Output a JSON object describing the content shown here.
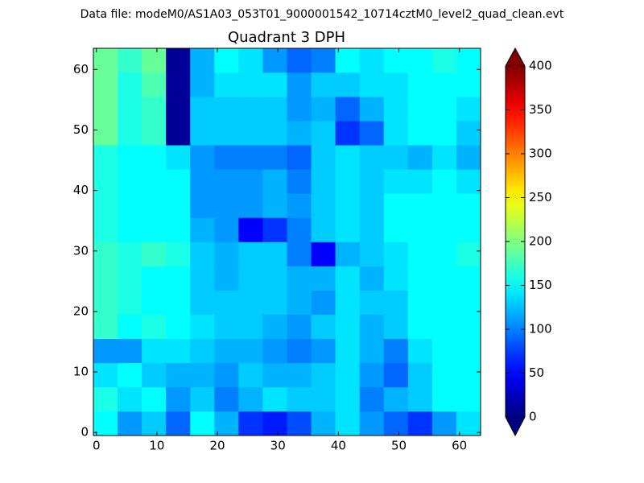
{
  "chart_data": {
    "type": "heatmap",
    "suptitle": "Data file: modeM0/AS1A03_053T01_9000001542_10714cztM0_level2_quad_clean.evt",
    "title": "Quadrant 3 DPH",
    "colormap": "jet",
    "clim": [
      0,
      400
    ],
    "colorbar_ticks": [
      0,
      50,
      100,
      150,
      200,
      250,
      300,
      350,
      400
    ],
    "xbins": [
      -0.5,
      3.5,
      7.5,
      11.5,
      15.5,
      19.5,
      23.5,
      27.5,
      31.5,
      35.5,
      39.5,
      43.5,
      47.5,
      51.5,
      55.5,
      59.5,
      63.5
    ],
    "ybins": [
      -0.5,
      3.5,
      7.5,
      11.5,
      15.5,
      19.5,
      23.5,
      27.5,
      31.5,
      35.5,
      39.5,
      43.5,
      47.5,
      51.5,
      55.5,
      59.5,
      63.5
    ],
    "xlim": [
      -0.5,
      63.5
    ],
    "ylim": [
      -0.5,
      63.5
    ],
    "xticks": [
      0,
      10,
      20,
      30,
      40,
      50,
      60
    ],
    "yticks": [
      0,
      10,
      20,
      30,
      40,
      50,
      60
    ],
    "values": [
      [
        150,
        110,
        130,
        90,
        150,
        120,
        70,
        60,
        80,
        120,
        140,
        110,
        90,
        70,
        110,
        140
      ],
      [
        160,
        140,
        150,
        110,
        130,
        100,
        120,
        140,
        130,
        130,
        140,
        100,
        120,
        130,
        150,
        150
      ],
      [
        140,
        150,
        130,
        120,
        120,
        110,
        130,
        120,
        120,
        130,
        140,
        110,
        90,
        130,
        150,
        150
      ],
      [
        110,
        110,
        140,
        140,
        130,
        120,
        120,
        110,
        100,
        110,
        140,
        120,
        100,
        140,
        150,
        150
      ],
      [
        170,
        150,
        160,
        150,
        140,
        130,
        130,
        120,
        110,
        130,
        140,
        120,
        130,
        150,
        150,
        150
      ],
      [
        170,
        160,
        150,
        150,
        130,
        130,
        130,
        130,
        120,
        110,
        140,
        130,
        130,
        150,
        150,
        150
      ],
      [
        170,
        160,
        150,
        150,
        130,
        120,
        130,
        130,
        120,
        120,
        140,
        120,
        140,
        150,
        150,
        150
      ],
      [
        170,
        160,
        170,
        160,
        130,
        120,
        130,
        130,
        100,
        50,
        120,
        130,
        140,
        150,
        150,
        160
      ],
      [
        160,
        150,
        150,
        150,
        120,
        110,
        50,
        70,
        100,
        130,
        140,
        130,
        150,
        150,
        150,
        150
      ],
      [
        160,
        150,
        150,
        150,
        110,
        110,
        110,
        120,
        110,
        130,
        140,
        130,
        150,
        150,
        150,
        150
      ],
      [
        160,
        150,
        150,
        150,
        110,
        110,
        110,
        120,
        100,
        130,
        140,
        130,
        140,
        140,
        150,
        140
      ],
      [
        160,
        150,
        150,
        140,
        110,
        100,
        100,
        100,
        90,
        130,
        140,
        130,
        130,
        120,
        140,
        120
      ],
      [
        190,
        160,
        170,
        10,
        130,
        130,
        130,
        130,
        120,
        130,
        70,
        90,
        140,
        150,
        150,
        130
      ],
      [
        190,
        160,
        170,
        10,
        130,
        130,
        130,
        130,
        110,
        120,
        90,
        120,
        140,
        150,
        150,
        140
      ],
      [
        190,
        160,
        180,
        10,
        120,
        140,
        140,
        140,
        110,
        130,
        130,
        140,
        140,
        150,
        150,
        150
      ],
      [
        190,
        170,
        190,
        10,
        120,
        150,
        140,
        110,
        90,
        100,
        150,
        140,
        150,
        150,
        160,
        150
      ]
    ]
  }
}
